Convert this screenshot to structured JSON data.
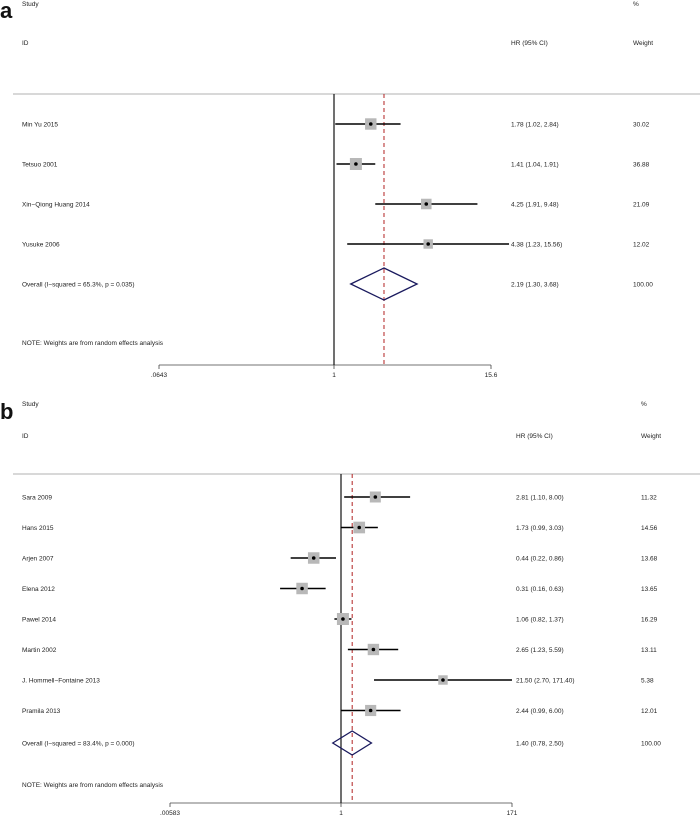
{
  "chart_data": [
    {
      "type": "forest",
      "panel_label": "a",
      "headers": {
        "col1_top": "Study",
        "col1_bottom": "ID",
        "col2": "HR (95% CI)",
        "col3_top": "%",
        "col3_bottom": "Weight"
      },
      "studies": [
        {
          "name": "Min Yu 2015",
          "hr": 1.78,
          "lo": 1.02,
          "hi": 2.84,
          "ci_text": "1.78 (1.02, 2.84)",
          "weight": "30.02",
          "w": 30.02
        },
        {
          "name": "Tetsuo 2001",
          "hr": 1.41,
          "lo": 1.04,
          "hi": 1.91,
          "ci_text": "1.41 (1.04, 1.91)",
          "weight": "36.88",
          "w": 36.88
        },
        {
          "name": "Xin−Qiong Huang 2014",
          "hr": 4.25,
          "lo": 1.91,
          "hi": 9.48,
          "ci_text": "4.25 (1.91, 9.48)",
          "weight": "21.09",
          "w": 21.09
        },
        {
          "name": "Yusuke 2006",
          "hr": 4.38,
          "lo": 1.23,
          "hi": 15.56,
          "ci_text": "4.38 (1.23, 15.56)",
          "weight": "12.02",
          "w": 12.02
        }
      ],
      "overall": {
        "label": "Overall  (I−squared = 65.3%, p = 0.035)",
        "hr": 2.19,
        "lo": 1.3,
        "hi": 3.68,
        "ci_text": "2.19 (1.30, 3.68)",
        "weight": "100.00"
      },
      "note": "NOTE: Weights are from random effects analysis",
      "axis": {
        "scale": "log",
        "ticks": [
          {
            "value": 0.0643,
            "label": ".0643"
          },
          {
            "value": 1,
            "label": "1"
          },
          {
            "value": 15.6,
            "label": "15.6"
          }
        ]
      }
    },
    {
      "type": "forest",
      "panel_label": "b",
      "headers": {
        "col1_top": "Study",
        "col1_bottom": "ID",
        "col2": "HR (95% CI)",
        "col3_top": "%",
        "col3_bottom": "Weight"
      },
      "studies": [
        {
          "name": "Sara 2009",
          "hr": 2.81,
          "lo": 1.1,
          "hi": 8.0,
          "ci_text": "2.81 (1.10, 8.00)",
          "weight": "11.32",
          "w": 11.32
        },
        {
          "name": "Hans 2015",
          "hr": 1.73,
          "lo": 0.99,
          "hi": 3.03,
          "ci_text": "1.73 (0.99, 3.03)",
          "weight": "14.56",
          "w": 14.56
        },
        {
          "name": "Arjen 2007",
          "hr": 0.44,
          "lo": 0.22,
          "hi": 0.86,
          "ci_text": "0.44 (0.22, 0.86)",
          "weight": "13.68",
          "w": 13.68
        },
        {
          "name": "Elena 2012",
          "hr": 0.31,
          "lo": 0.16,
          "hi": 0.63,
          "ci_text": "0.31 (0.16, 0.63)",
          "weight": "13.65",
          "w": 13.65
        },
        {
          "name": "Pawel 2014",
          "hr": 1.06,
          "lo": 0.82,
          "hi": 1.37,
          "ci_text": "1.06 (0.82, 1.37)",
          "weight": "16.29",
          "w": 16.29
        },
        {
          "name": "Martin 2002",
          "hr": 2.65,
          "lo": 1.23,
          "hi": 5.59,
          "ci_text": "2.65 (1.23, 5.59)",
          "weight": "13.11",
          "w": 13.11
        },
        {
          "name": "J. Hommell−Fontaine 2013",
          "hr": 21.5,
          "lo": 2.7,
          "hi": 171.4,
          "ci_text": "21.50 (2.70, 171.40)",
          "weight": "5.38",
          "w": 5.38
        },
        {
          "name": "Pramila 2013",
          "hr": 2.44,
          "lo": 0.99,
          "hi": 6.0,
          "ci_text": "2.44 (0.99, 6.00)",
          "weight": "12.01",
          "w": 12.01
        }
      ],
      "overall": {
        "label": "Overall  (I−squared = 83.4%, p = 0.000)",
        "hr": 1.4,
        "lo": 0.78,
        "hi": 2.5,
        "ci_text": "1.40 (0.78, 2.50)",
        "weight": "100.00"
      },
      "note": "NOTE: Weights are from random effects analysis",
      "axis": {
        "scale": "log",
        "ticks": [
          {
            "value": 0.00583,
            "label": ".00583"
          },
          {
            "value": 1,
            "label": "1"
          },
          {
            "value": 171,
            "label": "171"
          }
        ]
      }
    }
  ]
}
